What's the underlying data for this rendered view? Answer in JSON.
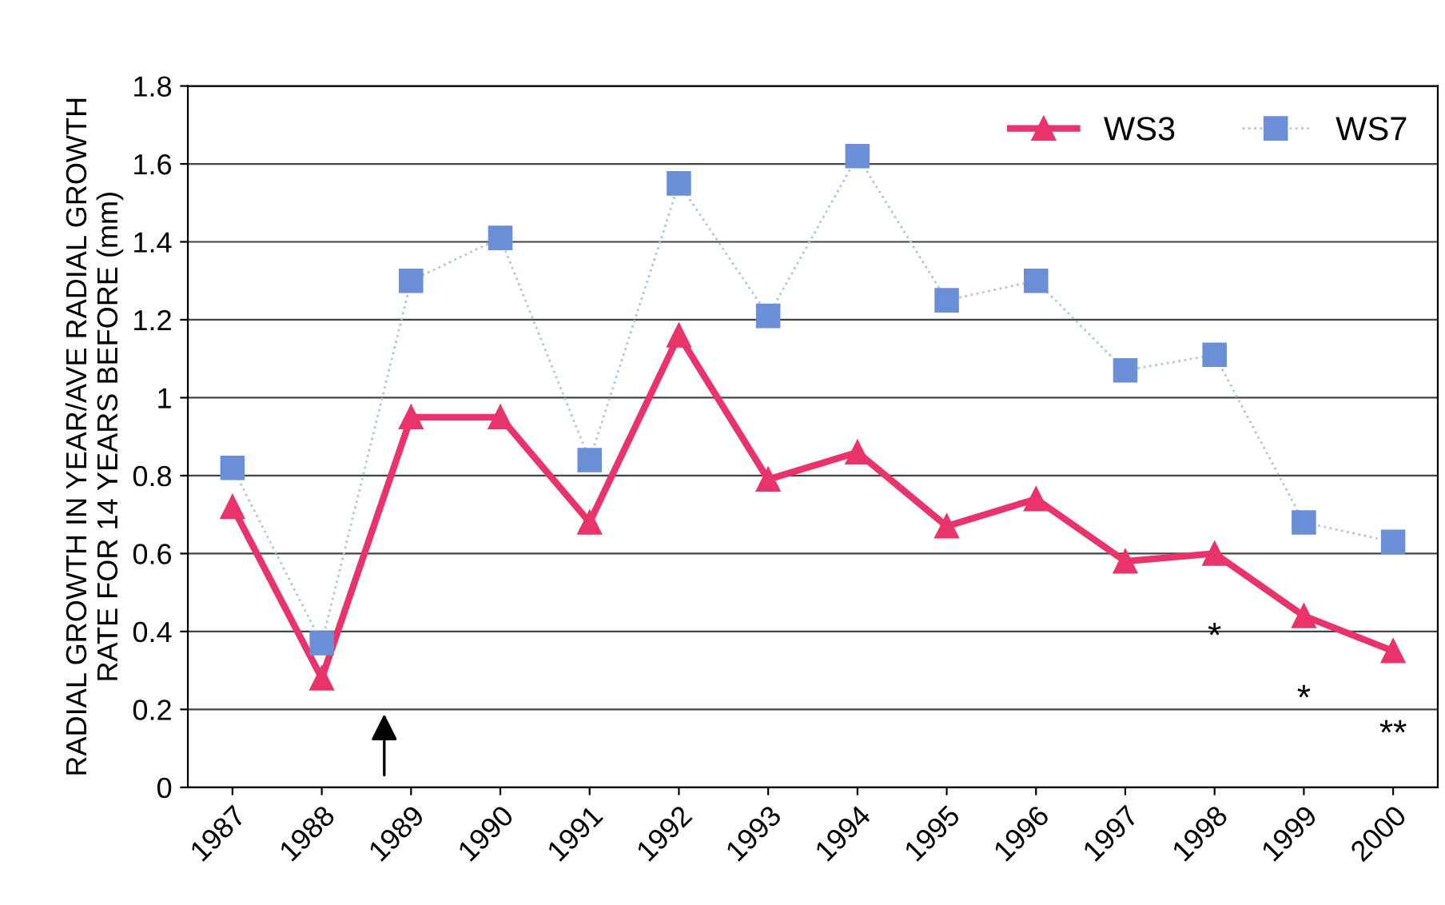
{
  "chart_data": {
    "type": "line",
    "ylabel": "RADIAL GROWTH IN YEAR/AVE RADIAL GROWTH\nRATE FOR 14 YEARS BEFORE (mm)",
    "categories": [
      "1987",
      "1988",
      "1989",
      "1990",
      "1991",
      "1992",
      "1993",
      "1994",
      "1995",
      "1996",
      "1997",
      "1998",
      "1999",
      "2000"
    ],
    "series": [
      {
        "name": "WS3",
        "color": "#e8336b",
        "marker": "triangle",
        "line_style": "solid",
        "values": [
          0.72,
          0.28,
          0.95,
          0.95,
          0.68,
          1.16,
          0.79,
          0.86,
          0.67,
          0.74,
          0.58,
          0.6,
          0.44,
          0.35
        ]
      },
      {
        "name": "WS7",
        "color": "#6b8fd6",
        "marker": "square",
        "line_style": "dotted",
        "values": [
          0.82,
          0.37,
          1.3,
          1.41,
          0.84,
          1.55,
          1.21,
          1.62,
          1.25,
          1.3,
          1.07,
          1.11,
          0.68,
          0.63
        ]
      }
    ],
    "annotations": [
      {
        "text": "*",
        "x": "1998",
        "y": 0.6
      },
      {
        "text": "*",
        "x": "1999",
        "y": 0.44
      },
      {
        "text": "**",
        "x": "2000",
        "y": 0.35
      }
    ],
    "ylim": [
      0,
      1.8
    ],
    "yticks": [
      0,
      0.2,
      0.4,
      0.6,
      0.8,
      1,
      1.2,
      1.4,
      1.6,
      1.8
    ],
    "grid": "y",
    "legend": "top right"
  }
}
